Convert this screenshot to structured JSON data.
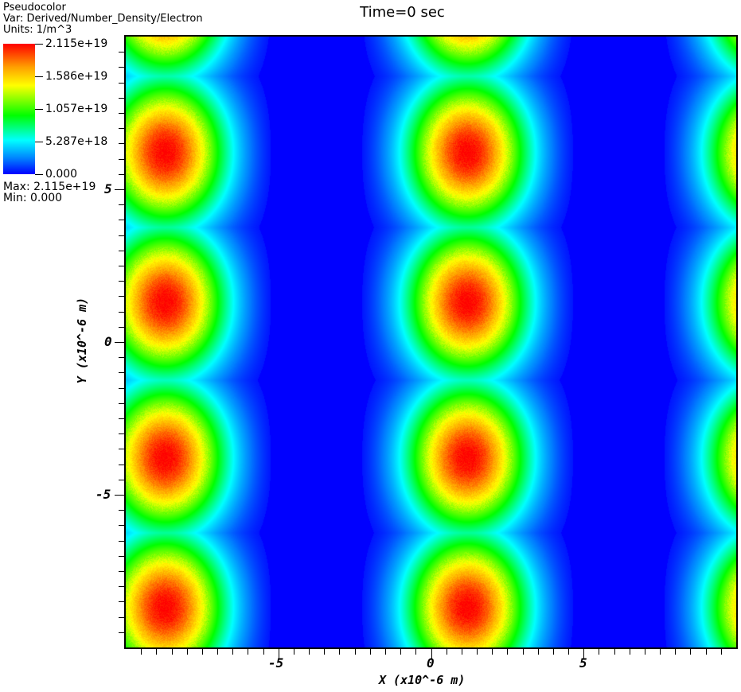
{
  "legend": {
    "plot_type": "Pseudocolor",
    "var_line": "Var: Derived/Number_Density/Electron",
    "units_line": "Units: 1/m^3",
    "ticks": [
      "2.115e+19",
      "1.586e+19",
      "1.057e+19",
      "5.287e+18",
      "0.000"
    ],
    "max_line": "Max:  2.115e+19",
    "min_line": "Min:  0.000"
  },
  "title": "Time=0 sec",
  "axes": {
    "xlabel": "X (x10^-6 m)",
    "ylabel": "Y (x10^-6 m)",
    "xticks": [
      "-5",
      "0",
      "5"
    ],
    "yticks": [
      "5",
      "0",
      "-5"
    ]
  },
  "chart_data": {
    "type": "heatmap",
    "title": "Time=0 sec",
    "variable": "Derived/Number_Density/Electron",
    "units": "1/m^3",
    "xlabel": "X (x10^-6 m)",
    "ylabel": "Y (x10^-6 m)",
    "xlim": [
      -10,
      10
    ],
    "ylim": [
      -10,
      10
    ],
    "xticks": [
      -5,
      0,
      5
    ],
    "yticks": [
      -5,
      0,
      5
    ],
    "colorbar": {
      "min": 0.0,
      "max": 2.115e+19,
      "ticks": [
        0.0,
        5.287e+18,
        1.057e+19,
        1.586e+19,
        2.115e+19
      ],
      "colormap": "hot_desaturated_rainbow"
    },
    "blob_centers_x": [
      -8.7,
      1.2,
      11.1
    ],
    "blob_centers_y": [
      11.2,
      6.2,
      1.3,
      -3.8,
      -8.7
    ],
    "blob_half_width": 3.7,
    "blob_half_height": 4.2,
    "peak_value": 2.115e+19,
    "background_value": 0.0
  }
}
